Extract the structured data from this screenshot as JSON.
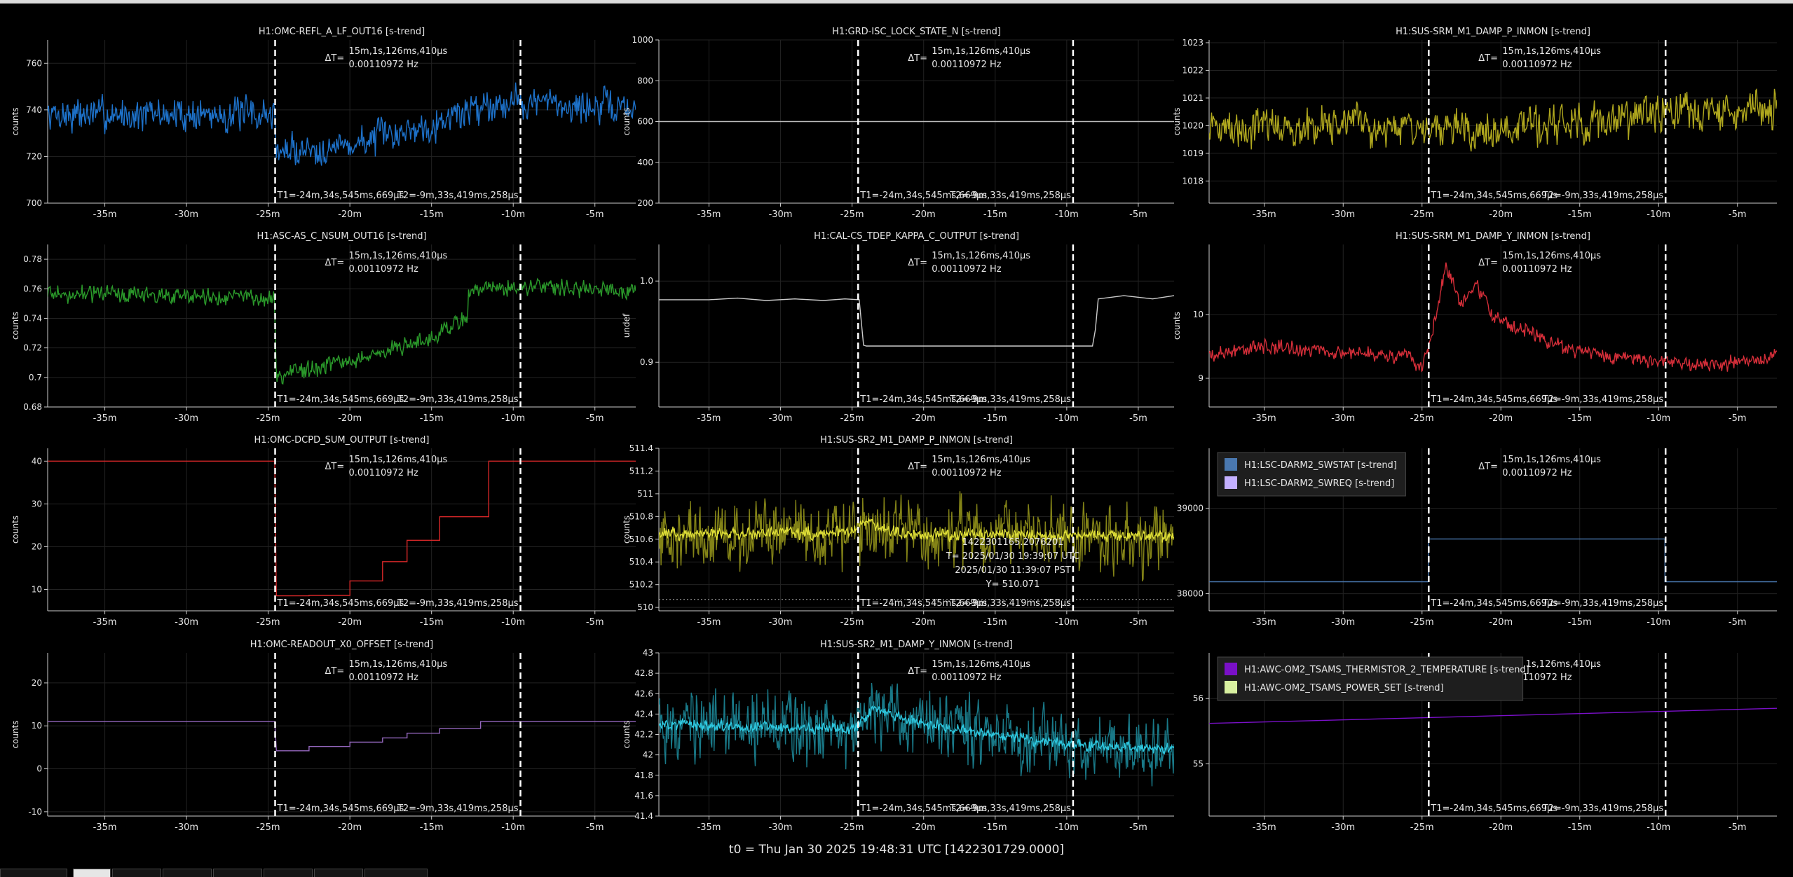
{
  "footer": {
    "t0": "t0 = Thu Jan 30 2025 19:48:31 UTC [1422301729.0000]"
  },
  "cursors": {
    "delta_label": "ΔT=",
    "delta_time": "15m,1s,126ms,410μs",
    "delta_freq": "0.00110972 Hz",
    "t1_label": "T1=-24m,34s,545ms,669μs",
    "t2_label": "T2=-9m,33s,419ms,258μs",
    "t1_min": -24.576,
    "t2_min": -9.557
  },
  "colors": {
    "background": "#000000",
    "grid": "#222222",
    "axis": "#cccccc",
    "cursor": "#ffffff"
  },
  "tabs": {
    "count": 8,
    "active_index": 1
  },
  "chart_data": [
    {
      "type": "line",
      "title": "H1:OMC-REFL_A_LF_OUT16 [s-trend]",
      "ylabel": "counts",
      "xlim": [
        -38.5,
        -2.5
      ],
      "ylim": [
        700,
        770
      ],
      "xticks": [
        -35,
        -30,
        -25,
        -20,
        -15,
        -10,
        -5
      ],
      "xtick_labels": [
        "-35m",
        "-30m",
        "-25m",
        "-20m",
        "-15m",
        "-10m",
        "-5m"
      ],
      "yticks": [
        700,
        720,
        740,
        760
      ],
      "ytick_labels": [
        "700",
        "720",
        "740",
        "760"
      ],
      "series": [
        {
          "color": "#1f77d4",
          "style": "noise",
          "amplitude": 14,
          "x": [
            -38.5,
            -30,
            -25,
            -24.6,
            -24.5,
            -20,
            -15,
            -12,
            -10,
            -5,
            -2.5
          ],
          "y": [
            738,
            738,
            738,
            738,
            722,
            725,
            734,
            742,
            744,
            741,
            741
          ]
        }
      ]
    },
    {
      "type": "line",
      "title": "H1:GRD-ISC_LOCK_STATE_N [s-trend]",
      "ylabel": "counts",
      "xlim": [
        -38.5,
        -2.5
      ],
      "ylim": [
        200,
        1000
      ],
      "xticks": [
        -35,
        -30,
        -25,
        -20,
        -15,
        -10,
        -5
      ],
      "xtick_labels": [
        "-35m",
        "-30m",
        "-25m",
        "-20m",
        "-15m",
        "-10m",
        "-5m"
      ],
      "yticks": [
        200,
        400,
        600,
        800,
        1000
      ],
      "ytick_labels": [
        "200",
        "400",
        "600",
        "800",
        "1000"
      ],
      "series": [
        {
          "color": "#bbbbbb",
          "style": "line",
          "x": [
            -38.5,
            -2.5
          ],
          "y": [
            600,
            600
          ]
        }
      ]
    },
    {
      "type": "line",
      "title": "H1:SUS-SRM_M1_DAMP_P_INMON [s-trend]",
      "ylabel": "counts",
      "xlim": [
        -38.5,
        -2.5
      ],
      "ylim": [
        1017.2,
        1023.1
      ],
      "xticks": [
        -35,
        -30,
        -25,
        -20,
        -15,
        -10,
        -5
      ],
      "xtick_labels": [
        "-35m",
        "-30m",
        "-25m",
        "-20m",
        "-15m",
        "-10m",
        "-5m"
      ],
      "yticks": [
        1018,
        1019,
        1020,
        1021,
        1022,
        1023
      ],
      "ytick_labels": [
        "1018",
        "1019",
        "1020",
        "1021",
        "1022",
        "1023"
      ],
      "series": [
        {
          "color": "#b8b020",
          "style": "noise",
          "amplitude": 1.3,
          "x": [
            -38.5,
            -30,
            -25,
            -20,
            -15,
            -10,
            -2.5
          ],
          "y": [
            1019.9,
            1020.0,
            1019.9,
            1019.8,
            1020.1,
            1020.4,
            1020.6
          ]
        }
      ]
    },
    {
      "type": "line",
      "title": "H1:ASC-AS_C_NSUM_OUT16 [s-trend]",
      "ylabel": "counts",
      "xlim": [
        -38.5,
        -2.5
      ],
      "ylim": [
        0.68,
        0.79
      ],
      "xticks": [
        -35,
        -30,
        -25,
        -20,
        -15,
        -10,
        -5
      ],
      "xtick_labels": [
        "-35m",
        "-30m",
        "-25m",
        "-20m",
        "-15m",
        "-10m",
        "-5m"
      ],
      "yticks": [
        0.68,
        0.7,
        0.72,
        0.74,
        0.76,
        0.78
      ],
      "ytick_labels": [
        "0.68",
        "0.7",
        "0.72",
        "0.74",
        "0.76",
        "0.78"
      ],
      "series": [
        {
          "color": "#2ca02c",
          "style": "noise",
          "amplitude": 0.011,
          "x": [
            -38.5,
            -25,
            -24.6,
            -24.5,
            -20,
            -15,
            -12.8,
            -12.7,
            -10,
            -2.5
          ],
          "y": [
            0.757,
            0.754,
            0.754,
            0.701,
            0.711,
            0.727,
            0.741,
            0.759,
            0.762,
            0.758
          ]
        }
      ]
    },
    {
      "type": "line",
      "title": "H1:CAL-CS_TDEP_KAPPA_C_OUTPUT [s-trend]",
      "ylabel": "undef",
      "xlim": [
        -38.5,
        -2.5
      ],
      "ylim": [
        0.845,
        1.045
      ],
      "xticks": [
        -35,
        -30,
        -25,
        -20,
        -15,
        -10,
        -5
      ],
      "xtick_labels": [
        "-35m",
        "-30m",
        "-25m",
        "-20m",
        "-15m",
        "-10m",
        "-5m"
      ],
      "yticks": [
        0.9,
        1.0
      ],
      "ytick_labels": [
        "0.9",
        "1.0"
      ],
      "series": [
        {
          "color": "#cccccc",
          "style": "line",
          "x": [
            -38.5,
            -35,
            -33,
            -31,
            -29,
            -27,
            -25.5,
            -24.5,
            -24.2,
            -24.0,
            -8.2,
            -8.0,
            -7.8,
            -6,
            -4,
            -2.5
          ],
          "y": [
            0.977,
            0.977,
            0.979,
            0.976,
            0.978,
            0.976,
            0.978,
            0.977,
            0.921,
            0.92,
            0.92,
            0.94,
            0.978,
            0.982,
            0.978,
            0.982
          ]
        }
      ]
    },
    {
      "type": "line",
      "title": "H1:SUS-SRM_M1_DAMP_Y_INMON [s-trend]",
      "ylabel": "counts",
      "xlim": [
        -38.5,
        -2.5
      ],
      "ylim": [
        8.55,
        11.1
      ],
      "xticks": [
        -35,
        -30,
        -25,
        -20,
        -15,
        -10,
        -5
      ],
      "xtick_labels": [
        "-35m",
        "-30m",
        "-25m",
        "-20m",
        "-15m",
        "-10m",
        "-5m"
      ],
      "yticks": [
        9,
        10
      ],
      "ytick_labels": [
        "9",
        "10"
      ],
      "series": [
        {
          "color": "#e0303c",
          "style": "noise",
          "amplitude": 0.22,
          "x": [
            -38.5,
            -35,
            -30,
            -26,
            -25,
            -24.3,
            -23.5,
            -22.5,
            -21.5,
            -20.5,
            -19,
            -17,
            -15,
            -12,
            -10,
            -6,
            -2.5
          ],
          "y": [
            9.35,
            9.5,
            9.4,
            9.35,
            9.15,
            9.75,
            10.75,
            10.2,
            10.45,
            9.95,
            9.8,
            9.6,
            9.4,
            9.3,
            9.25,
            9.2,
            9.35
          ]
        }
      ]
    },
    {
      "type": "line",
      "title": "H1:OMC-DCPD_SUM_OUTPUT [s-trend]",
      "ylabel": "counts",
      "xlim": [
        -38.5,
        -2.5
      ],
      "ylim": [
        5,
        43
      ],
      "xticks": [
        -35,
        -30,
        -25,
        -20,
        -15,
        -10,
        -5
      ],
      "xtick_labels": [
        "-35m",
        "-30m",
        "-25m",
        "-20m",
        "-15m",
        "-10m",
        "-5m"
      ],
      "yticks": [
        10,
        20,
        30,
        40
      ],
      "ytick_labels": [
        "10",
        "20",
        "30",
        "40"
      ],
      "series": [
        {
          "color": "#d62728",
          "style": "line",
          "x": [
            -38.5,
            -24.6,
            -24.5,
            -22.5,
            -22.5,
            -20,
            -20,
            -18,
            -18,
            -16.5,
            -16.5,
            -14.5,
            -14.5,
            -12.5,
            -12.5,
            -11.5,
            -11.5,
            -2.5
          ],
          "y": [
            40,
            40,
            8.5,
            8.5,
            8.6,
            8.6,
            12,
            12,
            16.5,
            16.5,
            21.5,
            21.5,
            27,
            27,
            27,
            27,
            40,
            40
          ]
        }
      ]
    },
    {
      "type": "line",
      "title": "H1:SUS-SR2_M1_DAMP_P_INMON [s-trend]",
      "ylabel": "counts",
      "xlim": [
        -38.5,
        -2.5
      ],
      "ylim": [
        509.97,
        511.4
      ],
      "xticks": [
        -35,
        -30,
        -25,
        -20,
        -15,
        -10,
        -5
      ],
      "xtick_labels": [
        "-35m",
        "-30m",
        "-25m",
        "-20m",
        "-15m",
        "-10m",
        "-5m"
      ],
      "yticks": [
        510,
        510.2,
        510.4,
        510.6,
        510.8,
        511,
        511.2,
        511.4
      ],
      "ytick_labels": [
        "510",
        "510.2",
        "510.4",
        "510.6",
        "510.8",
        "511",
        "511.2",
        "511.4"
      ],
      "series": [
        {
          "color": "#8a8a18",
          "style": "noise",
          "amplitude": 0.55,
          "x": [
            -38.5,
            -25,
            -24,
            -20,
            -2.5
          ],
          "y": [
            510.65,
            510.66,
            510.72,
            510.65,
            510.62
          ]
        },
        {
          "color": "#e6e63a",
          "style": "noise",
          "amplitude": 0.1,
          "x": [
            -38.5,
            -25,
            -24,
            -23,
            -20,
            -2.5
          ],
          "y": [
            510.65,
            510.66,
            510.78,
            510.68,
            510.64,
            510.63
          ]
        },
        {
          "color": "#aaaaaa",
          "style": "dashed",
          "x": [
            -38.5,
            -2.5
          ],
          "y": [
            510.07,
            510.07
          ]
        }
      ],
      "tooltip": {
        "gps": "1422301165.2076201",
        "utc": "T= 2025/01/30 19:39:07 UTC",
        "local": "2025/01/30 11:39:07 PST",
        "y": "Y= 510.071"
      }
    },
    {
      "type": "line",
      "title": "",
      "ylabel": "",
      "xlim": [
        -38.5,
        -2.5
      ],
      "ylim": [
        37800,
        39700
      ],
      "xticks": [
        -35,
        -30,
        -25,
        -20,
        -15,
        -10,
        -5
      ],
      "xtick_labels": [
        "-35m",
        "-30m",
        "-25m",
        "-20m",
        "-15m",
        "-10m",
        "-5m"
      ],
      "yticks": [
        38000,
        39000
      ],
      "ytick_labels": [
        "38000",
        "39000"
      ],
      "legend": {
        "position": "top-left",
        "entries": [
          {
            "name": "H1:LSC-DARM2_SWSTAT [s-trend]",
            "color": "#4a78b0"
          },
          {
            "name": "H1:LSC-DARM2_SWREQ [s-trend]",
            "color": "#c4b0ff"
          }
        ]
      },
      "series": [
        {
          "color": "#4a78b0",
          "style": "line",
          "x": [
            -38.5,
            -24.6,
            -24.6,
            -9.6,
            -9.6,
            -2.5
          ],
          "y": [
            38140,
            38140,
            38640,
            38640,
            38140,
            38140
          ]
        }
      ]
    },
    {
      "type": "line",
      "title": "H1:OMC-READOUT_X0_OFFSET [s-trend]",
      "ylabel": "counts",
      "xlim": [
        -38.5,
        -2.5
      ],
      "ylim": [
        -11,
        27
      ],
      "xticks": [
        -35,
        -30,
        -25,
        -20,
        -15,
        -10,
        -5
      ],
      "xtick_labels": [
        "-35m",
        "-30m",
        "-25m",
        "-20m",
        "-15m",
        "-10m",
        "-5m"
      ],
      "yticks": [
        -10,
        0,
        10,
        20
      ],
      "ytick_labels": [
        "-10",
        "0",
        "10",
        "20"
      ],
      "series": [
        {
          "color": "#9467bd",
          "style": "line",
          "x": [
            -38.5,
            -24.6,
            -24.5,
            -22.5,
            -22.5,
            -20,
            -20,
            -18,
            -18,
            -16.5,
            -16.5,
            -14.5,
            -14.5,
            -12,
            -12,
            -2.5
          ],
          "y": [
            11,
            11,
            4.2,
            4.2,
            5.2,
            5.2,
            6.2,
            6.2,
            7.2,
            7.2,
            8.3,
            8.3,
            9.4,
            9.4,
            11,
            11
          ]
        }
      ]
    },
    {
      "type": "line",
      "title": "H1:SUS-SR2_M1_DAMP_Y_INMON [s-trend]",
      "ylabel": "counts",
      "xlim": [
        -38.5,
        -2.5
      ],
      "ylim": [
        41.4,
        43
      ],
      "xticks": [
        -35,
        -30,
        -25,
        -20,
        -15,
        -10,
        -5
      ],
      "xtick_labels": [
        "-35m",
        "-30m",
        "-25m",
        "-20m",
        "-15m",
        "-10m",
        "-5m"
      ],
      "yticks": [
        41.4,
        41.6,
        41.8,
        42,
        42.2,
        42.4,
        42.6,
        42.8,
        43
      ],
      "ytick_labels": [
        "41.4",
        "41.6",
        "41.8",
        "42",
        "42.2",
        "42.4",
        "42.6",
        "42.8",
        "43"
      ],
      "series": [
        {
          "color": "#1a7f8f",
          "style": "noise",
          "amplitude": 0.62,
          "x": [
            -38.5,
            -25,
            -23.5,
            -20,
            -15,
            -10,
            -2.5
          ],
          "y": [
            42.3,
            42.25,
            42.4,
            42.3,
            42.2,
            42.1,
            42.05
          ]
        },
        {
          "color": "#30d0e8",
          "style": "noise",
          "amplitude": 0.1,
          "x": [
            -38.5,
            -25,
            -23.5,
            -20,
            -15,
            -10,
            -2.5
          ],
          "y": [
            42.3,
            42.25,
            42.45,
            42.3,
            42.2,
            42.1,
            42.05
          ]
        }
      ]
    },
    {
      "type": "line",
      "title": "",
      "ylabel": "",
      "xlim": [
        -38.5,
        -2.5
      ],
      "ylim": [
        54.2,
        56.7
      ],
      "xticks": [
        -35,
        -30,
        -25,
        -20,
        -15,
        -10,
        -5
      ],
      "xtick_labels": [
        "-35m",
        "-30m",
        "-25m",
        "-20m",
        "-15m",
        "-10m",
        "-5m"
      ],
      "yticks": [
        55,
        56
      ],
      "ytick_labels": [
        "55",
        "56"
      ],
      "legend": {
        "position": "top-left",
        "entries": [
          {
            "name": "H1:AWC-OM2_TSAMS_THERMISTOR_2_TEMPERATURE [s-trend]",
            "color": "#7a10c8"
          },
          {
            "name": "H1:AWC-OM2_TSAMS_POWER_SET [s-trend]",
            "color": "#d8f0a0"
          }
        ]
      },
      "series": [
        {
          "color": "#7a10c8",
          "style": "line",
          "x": [
            -38.5,
            -2.5
          ],
          "y": [
            55.62,
            55.85
          ]
        }
      ]
    }
  ]
}
